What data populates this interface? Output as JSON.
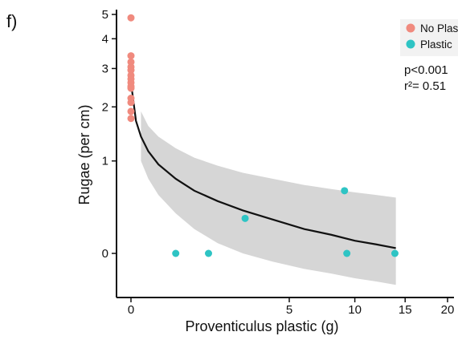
{
  "chart_data": {
    "type": "scatter",
    "panel_label": "f)",
    "xlabel": "Proventiculus plastic (g)",
    "ylabel": "Rugae (per cm)",
    "x_scale": "sqrt",
    "y_scale": "log(y+1)",
    "x_ticks": [
      0,
      5,
      10,
      15,
      20
    ],
    "y_ticks": [
      0,
      1,
      2,
      3,
      4,
      5
    ],
    "xlim": [
      0,
      20
    ],
    "ylim": [
      -0.28,
      5.3
    ],
    "grid": false,
    "legend_position": "top-right",
    "stats": {
      "p_text": "p<0.001",
      "r2_text": "r²= 0.51"
    },
    "series": [
      {
        "name": "No Plastic",
        "color": "#f08a7e",
        "points": [
          {
            "x": 0,
            "y": 4.85
          },
          {
            "x": 0,
            "y": 3.4
          },
          {
            "x": 0,
            "y": 3.2
          },
          {
            "x": 0,
            "y": 3.05
          },
          {
            "x": 0,
            "y": 2.95
          },
          {
            "x": 0,
            "y": 2.8
          },
          {
            "x": 0,
            "y": 2.7
          },
          {
            "x": 0,
            "y": 2.6
          },
          {
            "x": 0,
            "y": 2.5
          },
          {
            "x": 0,
            "y": 2.45
          },
          {
            "x": 0,
            "y": 2.2
          },
          {
            "x": 0,
            "y": 2.1
          },
          {
            "x": 0,
            "y": 1.9
          },
          {
            "x": 0,
            "y": 1.75
          }
        ]
      },
      {
        "name": "Plastic",
        "color": "#2ec4c4",
        "points": [
          {
            "x": 0.4,
            "y": 0
          },
          {
            "x": 1.2,
            "y": 0
          },
          {
            "x": 2.6,
            "y": 0.3
          },
          {
            "x": 9.1,
            "y": 0.6
          },
          {
            "x": 9.3,
            "y": 0
          },
          {
            "x": 13.9,
            "y": 0
          }
        ]
      }
    ],
    "fit": {
      "color": "#111111",
      "band_color": "#d6d6d6",
      "line": [
        {
          "x": 0,
          "y": 2.6
        },
        {
          "x": 0.005,
          "y": 1.7
        },
        {
          "x": 0.02,
          "y": 1.4
        },
        {
          "x": 0.06,
          "y": 1.15
        },
        {
          "x": 0.15,
          "y": 0.95
        },
        {
          "x": 0.4,
          "y": 0.75
        },
        {
          "x": 0.8,
          "y": 0.6
        },
        {
          "x": 1.5,
          "y": 0.48
        },
        {
          "x": 2.5,
          "y": 0.38
        },
        {
          "x": 4,
          "y": 0.29
        },
        {
          "x": 6,
          "y": 0.2
        },
        {
          "x": 8,
          "y": 0.15
        },
        {
          "x": 10,
          "y": 0.1
        },
        {
          "x": 12,
          "y": 0.07
        },
        {
          "x": 14,
          "y": 0.04
        }
      ],
      "upper": [
        {
          "x": 0.02,
          "y": 1.9
        },
        {
          "x": 0.06,
          "y": 1.6
        },
        {
          "x": 0.15,
          "y": 1.4
        },
        {
          "x": 0.4,
          "y": 1.2
        },
        {
          "x": 0.8,
          "y": 1.05
        },
        {
          "x": 1.5,
          "y": 0.93
        },
        {
          "x": 2.5,
          "y": 0.83
        },
        {
          "x": 4,
          "y": 0.75
        },
        {
          "x": 6,
          "y": 0.67
        },
        {
          "x": 8,
          "y": 0.62
        },
        {
          "x": 10,
          "y": 0.58
        },
        {
          "x": 12,
          "y": 0.55
        },
        {
          "x": 14,
          "y": 0.52
        }
      ],
      "lower": [
        {
          "x": 0.02,
          "y": 1.0
        },
        {
          "x": 0.06,
          "y": 0.75
        },
        {
          "x": 0.15,
          "y": 0.55
        },
        {
          "x": 0.4,
          "y": 0.35
        },
        {
          "x": 0.8,
          "y": 0.2
        },
        {
          "x": 1.5,
          "y": 0.08
        },
        {
          "x": 2.5,
          "y": 0.0
        },
        {
          "x": 4,
          "y": -0.06
        },
        {
          "x": 6,
          "y": -0.11
        },
        {
          "x": 8,
          "y": -0.14
        },
        {
          "x": 10,
          "y": -0.17
        },
        {
          "x": 12,
          "y": -0.19
        },
        {
          "x": 14,
          "y": -0.21
        }
      ]
    }
  }
}
